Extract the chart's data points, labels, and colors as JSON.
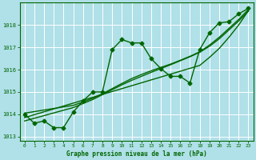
{
  "title": "Graphe pression niveau de la mer (hPa)",
  "background_color": "#b0e0e8",
  "line_color": "#006600",
  "grid_color": "#ffffff",
  "xlim": [
    -0.5,
    23.5
  ],
  "ylim": [
    1012.8,
    1019.0
  ],
  "yticks": [
    1013,
    1014,
    1015,
    1016,
    1017,
    1018
  ],
  "xticks": [
    0,
    1,
    2,
    3,
    4,
    5,
    6,
    7,
    8,
    9,
    10,
    11,
    12,
    13,
    14,
    15,
    16,
    17,
    18,
    19,
    20,
    21,
    22,
    23
  ],
  "main_series": [
    1014.0,
    1013.6,
    1013.7,
    1013.4,
    1013.4,
    1014.1,
    1014.6,
    1015.0,
    1015.0,
    1016.9,
    1017.35,
    1017.2,
    1017.2,
    1016.5,
    1016.05,
    1015.7,
    1015.7,
    1015.4,
    1016.9,
    1017.65,
    1018.1,
    1018.15,
    1018.5,
    1018.75
  ],
  "trend1": [
    1013.85,
    1013.98,
    1014.11,
    1014.24,
    1014.37,
    1014.5,
    1014.63,
    1014.76,
    1014.89,
    1015.02,
    1015.15,
    1015.28,
    1015.41,
    1015.54,
    1015.67,
    1015.8,
    1015.93,
    1016.06,
    1016.19,
    1016.55,
    1016.95,
    1017.45,
    1018.0,
    1018.65
  ],
  "trend2": [
    1014.05,
    1014.12,
    1014.19,
    1014.26,
    1014.33,
    1014.4,
    1014.55,
    1014.72,
    1014.92,
    1015.15,
    1015.38,
    1015.6,
    1015.78,
    1015.95,
    1016.1,
    1016.25,
    1016.42,
    1016.6,
    1016.8,
    1017.1,
    1017.45,
    1017.85,
    1018.25,
    1018.7
  ],
  "trend3": [
    1013.7,
    1013.82,
    1013.94,
    1014.06,
    1014.18,
    1014.3,
    1014.48,
    1014.66,
    1014.88,
    1015.1,
    1015.32,
    1015.52,
    1015.7,
    1015.88,
    1016.05,
    1016.22,
    1016.4,
    1016.58,
    1016.78,
    1017.05,
    1017.38,
    1017.78,
    1018.18,
    1018.62
  ],
  "marker": "D",
  "marker_size": 2.5,
  "linewidth": 1.0,
  "tick_fontsize": 5,
  "xlabel_fontsize": 5.5
}
